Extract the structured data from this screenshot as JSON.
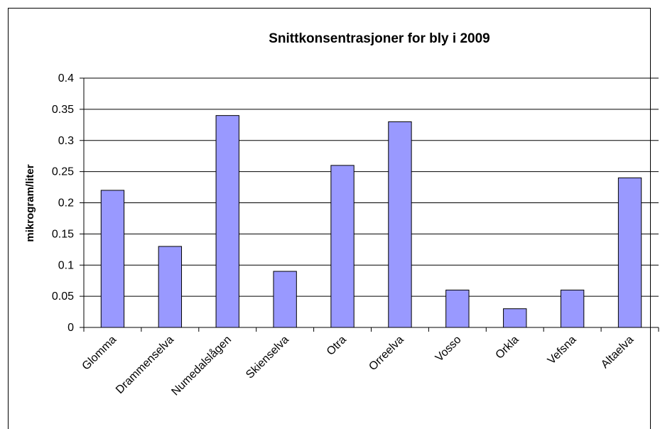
{
  "chart_data": {
    "type": "bar",
    "title": "Snittkonsentrasjoner for bly i 2009",
    "xlabel": "",
    "ylabel": "mikrogram/liter",
    "categories": [
      "Glomma",
      "Drammenselva",
      "Numedalslågen",
      "Skienselva",
      "Otra",
      "Orreelva",
      "Vosso",
      "Orkla",
      "Vefsna",
      "Altaelva"
    ],
    "values": [
      0.22,
      0.13,
      0.34,
      0.09,
      0.26,
      0.33,
      0.06,
      0.03,
      0.06,
      0.24
    ],
    "ylim": [
      0,
      0.4
    ],
    "yticks": [
      0,
      0.05,
      0.1,
      0.15,
      0.2,
      0.25,
      0.3,
      0.35,
      0.4
    ],
    "ytick_labels": [
      "0",
      "0.05",
      "0.1",
      "0.15",
      "0.2",
      "0.25",
      "0.3",
      "0.35",
      "0.4"
    ],
    "grid": true,
    "legend": "none",
    "colors": {
      "bar_fill": "#9999ff",
      "bar_stroke": "#000000",
      "grid": "#000000"
    }
  }
}
